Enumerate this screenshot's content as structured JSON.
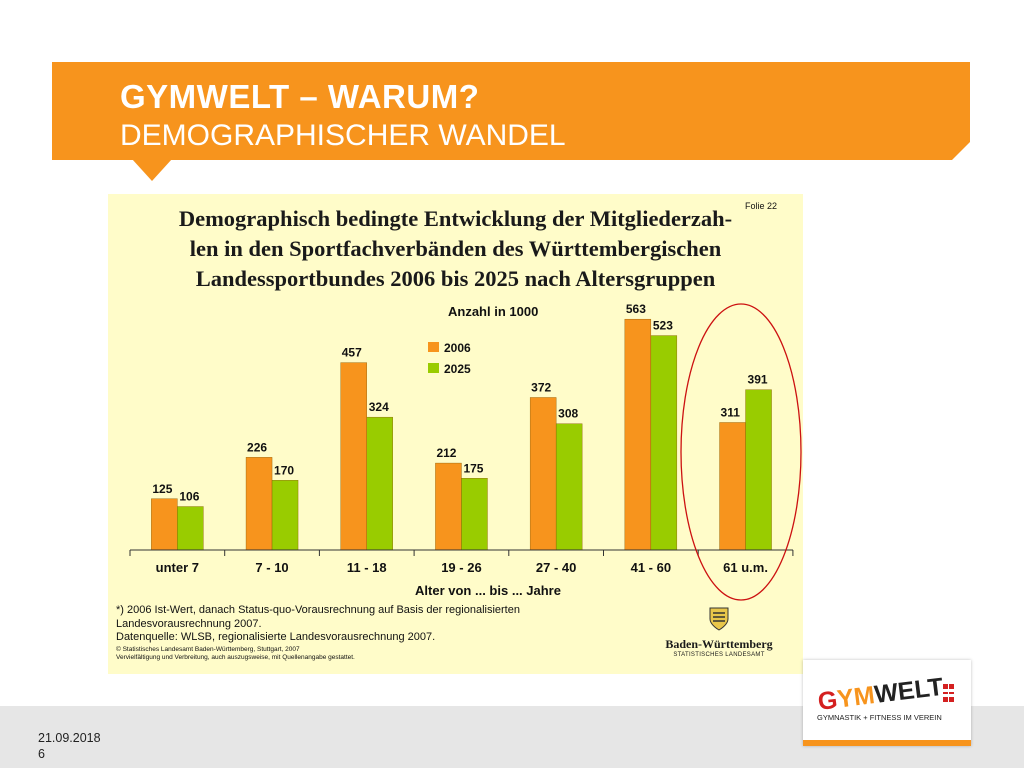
{
  "slide": {
    "title": "GYMWELT – WARUM?",
    "subtitle": "DEMOGRAPHISCHER WANDEL",
    "date": "21.09.2018",
    "page_number": "6"
  },
  "colors": {
    "accent": "#f7941d",
    "series_2006": "#f7941d",
    "series_2025": "#99cc00",
    "panel_bg": "#fffcc9",
    "highlight_ellipse": "#cc1111"
  },
  "chart_panel": {
    "folie": "Folie 22",
    "title_lines": [
      "Demographisch bedingte Entwicklung der Mitgliederzah-",
      "len in den Sportfachverbänden des Württembergischen",
      "Landessportbundes 2006 bis 2025 nach Altersgruppen"
    ],
    "footnotes": [
      "*) 2006 Ist-Wert, danach Status-quo-Vorausrechnung auf Basis der regionalisierten",
      "Landesvorausrechnung 2007.",
      "Datenquelle: WLSB, regionalisierte Landesvorausrechnung 2007."
    ],
    "copyright": [
      "© Statistisches Landesamt Baden-Württemberg, Stuttgart, 2007",
      "Vervielfältigung und Verbreitung, auch auszugsweise, mit Quellenangabe gestattet."
    ],
    "source_logo": {
      "name": "Baden-Württemberg",
      "sub": "STATISTISCHES LANDESAMT",
      "icon": "coat-of-arms-icon"
    }
  },
  "chart_data": {
    "type": "bar",
    "unit_label": "Anzahl in 1000",
    "xlabel": "Alter von ... bis ... Jahre",
    "categories": [
      "unter 7",
      "7 - 10",
      "11 - 18",
      "19 - 26",
      "27 - 40",
      "41 - 60",
      "61 u.m."
    ],
    "series": [
      {
        "name": "2006",
        "values": [
          125,
          226,
          457,
          212,
          372,
          563,
          311
        ]
      },
      {
        "name": "2025",
        "values": [
          106,
          170,
          324,
          175,
          308,
          523,
          391
        ]
      }
    ],
    "ylim": [
      0,
      600
    ],
    "legend": "top-center",
    "grid": false,
    "highlighted_category": "61 u.m."
  },
  "brand_logo": {
    "text": "GYMWELT",
    "tagline": "GYMNASTIK + FITNESS IM VEREIN",
    "icon": "gymwelt-emblem-icon"
  }
}
